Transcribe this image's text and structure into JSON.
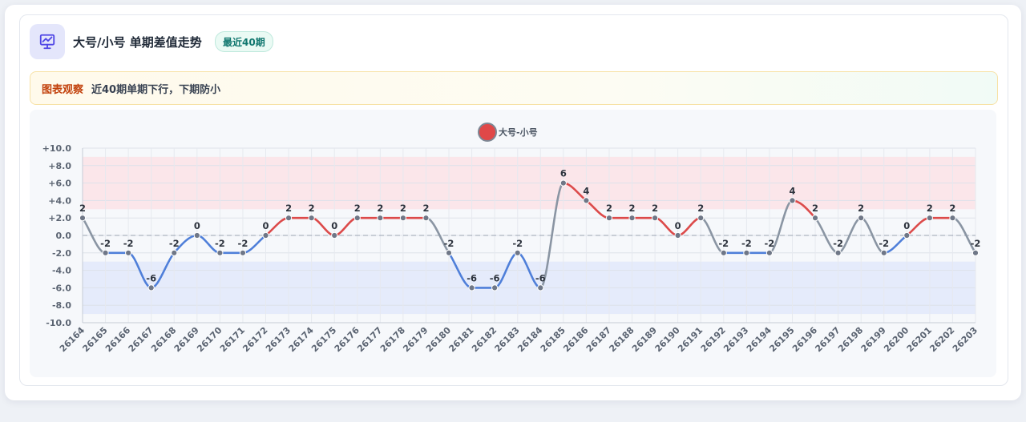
{
  "header": {
    "title": "大号/小号 单期差值走势",
    "badge": "最近40期"
  },
  "insight": {
    "tag": "图表观察",
    "text": "近40期单期下行，下期防小"
  },
  "colors": {
    "up": "#dc4a4a",
    "down": "#4f7fd9",
    "flat": "#8a95a3",
    "legend": "#e04848",
    "upper_band": "#fbe3e6",
    "lower_band": "#e2e9fa"
  },
  "chart_data": {
    "type": "line",
    "legend": "大号-小号",
    "legend_position": "top-center",
    "ylim": [
      -10,
      10
    ],
    "yticks": [
      "+10.0",
      "+8.0",
      "+6.0",
      "+4.0",
      "+2.0",
      "0.0",
      "-2.0",
      "-4.0",
      "-6.0",
      "-8.0",
      "-10.0"
    ],
    "bands": {
      "upper": [
        3,
        9
      ],
      "lower": [
        -9,
        -3
      ]
    },
    "zero_line": 0,
    "grid": true,
    "x": [
      "26164",
      "26165",
      "26166",
      "26167",
      "26168",
      "26169",
      "26170",
      "26171",
      "26172",
      "26173",
      "26174",
      "26175",
      "26176",
      "26177",
      "26178",
      "26179",
      "26180",
      "26181",
      "26182",
      "26183",
      "26184",
      "26185",
      "26186",
      "26187",
      "26188",
      "26189",
      "26190",
      "26191",
      "26192",
      "26193",
      "26194",
      "26195",
      "26196",
      "26197",
      "26198",
      "26199",
      "26200",
      "26201",
      "26202",
      "26203"
    ],
    "series": [
      {
        "name": "大号-小号",
        "values": [
          2,
          -2,
          -2,
          -6,
          -2,
          0,
          -2,
          -2,
          0,
          2,
          2,
          0,
          2,
          2,
          2,
          2,
          -2,
          -6,
          -6,
          -2,
          -6,
          6,
          4,
          2,
          2,
          2,
          0,
          2,
          -2,
          -2,
          -2,
          4,
          2,
          -2,
          2,
          -2,
          0,
          2,
          2,
          -2
        ]
      }
    ]
  }
}
